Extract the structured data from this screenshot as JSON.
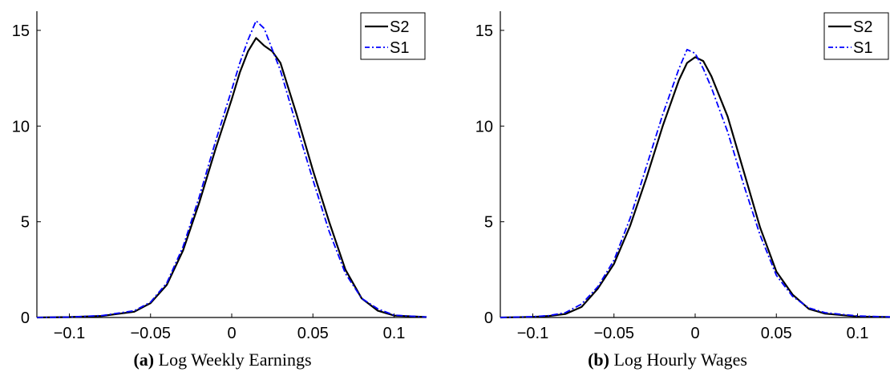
{
  "colors": {
    "S2": "#000000",
    "S1": "#0000ff"
  },
  "chart_data": [
    {
      "type": "line",
      "panel_label": "(a)",
      "title": "Log Weekly Earnings",
      "xlim": [
        -0.12,
        0.12
      ],
      "ylim": [
        0,
        16
      ],
      "xticks": [
        -0.1,
        -0.05,
        0,
        0.05,
        0.1
      ],
      "xtick_labels": [
        "−0.1",
        "−0.05",
        "0",
        "0.05",
        "0.1"
      ],
      "yticks": [
        0,
        5,
        10,
        15
      ],
      "ytick_labels": [
        "0",
        "5",
        "10",
        "15"
      ],
      "grid": false,
      "legend_position": "top-right",
      "series": [
        {
          "name": "S2",
          "style": "solid",
          "color": "#000000",
          "points": [
            [
              -0.12,
              0.0
            ],
            [
              -0.1,
              0.02
            ],
            [
              -0.08,
              0.08
            ],
            [
              -0.06,
              0.3
            ],
            [
              -0.05,
              0.75
            ],
            [
              -0.04,
              1.7
            ],
            [
              -0.03,
              3.5
            ],
            [
              -0.02,
              6.0
            ],
            [
              -0.01,
              8.8
            ],
            [
              0.0,
              11.4
            ],
            [
              0.005,
              12.8
            ],
            [
              0.01,
              13.9
            ],
            [
              0.015,
              14.6
            ],
            [
              0.02,
              14.2
            ],
            [
              0.025,
              13.9
            ],
            [
              0.03,
              13.3
            ],
            [
              0.04,
              10.6
            ],
            [
              0.05,
              7.7
            ],
            [
              0.06,
              5.0
            ],
            [
              0.07,
              2.5
            ],
            [
              0.08,
              1.0
            ],
            [
              0.09,
              0.35
            ],
            [
              0.1,
              0.1
            ],
            [
              0.12,
              0.02
            ]
          ]
        },
        {
          "name": "S1",
          "style": "dashdot",
          "color": "#0000ff",
          "points": [
            [
              -0.12,
              0.0
            ],
            [
              -0.1,
              0.02
            ],
            [
              -0.08,
              0.1
            ],
            [
              -0.06,
              0.35
            ],
            [
              -0.05,
              0.8
            ],
            [
              -0.04,
              1.8
            ],
            [
              -0.03,
              3.7
            ],
            [
              -0.02,
              6.3
            ],
            [
              -0.01,
              9.2
            ],
            [
              0.0,
              11.9
            ],
            [
              0.005,
              13.3
            ],
            [
              0.01,
              14.5
            ],
            [
              0.015,
              15.5
            ],
            [
              0.02,
              15.1
            ],
            [
              0.025,
              14.0
            ],
            [
              0.03,
              12.9
            ],
            [
              0.04,
              10.0
            ],
            [
              0.05,
              7.2
            ],
            [
              0.06,
              4.5
            ],
            [
              0.07,
              2.3
            ],
            [
              0.08,
              1.0
            ],
            [
              0.09,
              0.45
            ],
            [
              0.1,
              0.12
            ],
            [
              0.12,
              0.02
            ]
          ]
        }
      ]
    },
    {
      "type": "line",
      "panel_label": "(b)",
      "title": "Log Hourly Wages",
      "xlim": [
        -0.12,
        0.12
      ],
      "ylim": [
        0,
        16
      ],
      "xticks": [
        -0.1,
        -0.05,
        0,
        0.05,
        0.1
      ],
      "xtick_labels": [
        "−0.1",
        "−0.05",
        "0",
        "0.05",
        "0.1"
      ],
      "yticks": [
        0,
        5,
        10,
        15
      ],
      "ytick_labels": [
        "0",
        "5",
        "10",
        "15"
      ],
      "grid": false,
      "legend_position": "top-right",
      "series": [
        {
          "name": "S2",
          "style": "solid",
          "color": "#000000",
          "points": [
            [
              -0.12,
              0.0
            ],
            [
              -0.1,
              0.03
            ],
            [
              -0.09,
              0.08
            ],
            [
              -0.08,
              0.18
            ],
            [
              -0.07,
              0.55
            ],
            [
              -0.06,
              1.5
            ],
            [
              -0.05,
              2.8
            ],
            [
              -0.04,
              4.8
            ],
            [
              -0.03,
              7.3
            ],
            [
              -0.02,
              10.0
            ],
            [
              -0.01,
              12.4
            ],
            [
              -0.005,
              13.3
            ],
            [
              0.0,
              13.6
            ],
            [
              0.005,
              13.4
            ],
            [
              0.01,
              12.6
            ],
            [
              0.02,
              10.5
            ],
            [
              0.03,
              7.6
            ],
            [
              0.04,
              4.7
            ],
            [
              0.05,
              2.4
            ],
            [
              0.06,
              1.2
            ],
            [
              0.07,
              0.45
            ],
            [
              0.08,
              0.2
            ],
            [
              0.1,
              0.05
            ],
            [
              0.12,
              0.02
            ]
          ]
        },
        {
          "name": "S1",
          "style": "dashdot",
          "color": "#0000ff",
          "points": [
            [
              -0.12,
              0.0
            ],
            [
              -0.1,
              0.04
            ],
            [
              -0.09,
              0.1
            ],
            [
              -0.08,
              0.25
            ],
            [
              -0.07,
              0.7
            ],
            [
              -0.06,
              1.6
            ],
            [
              -0.05,
              3.0
            ],
            [
              -0.04,
              5.2
            ],
            [
              -0.03,
              7.9
            ],
            [
              -0.02,
              10.6
            ],
            [
              -0.01,
              13.0
            ],
            [
              -0.005,
              14.0
            ],
            [
              0.0,
              13.8
            ],
            [
              0.005,
              13.0
            ],
            [
              0.01,
              12.0
            ],
            [
              0.02,
              9.7
            ],
            [
              0.03,
              6.9
            ],
            [
              0.04,
              4.3
            ],
            [
              0.05,
              2.2
            ],
            [
              0.06,
              1.1
            ],
            [
              0.07,
              0.5
            ],
            [
              0.08,
              0.25
            ],
            [
              0.1,
              0.08
            ],
            [
              0.12,
              0.03
            ]
          ]
        }
      ]
    }
  ]
}
